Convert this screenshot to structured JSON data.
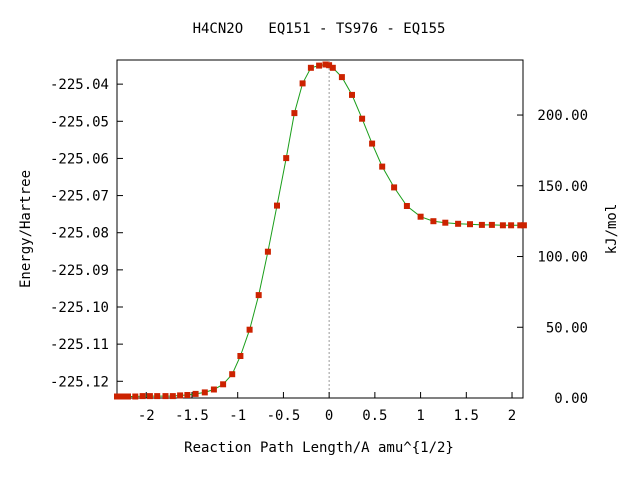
{
  "chart_data": {
    "type": "line",
    "title": "H4CN2O   EQ151 - TS976 - EQ155",
    "xlabel": "Reaction Path Length/A amu^{1/2}",
    "ylabel": "Energy/Hartree",
    "y2label": "kJ/mol",
    "xlim": [
      -2.32,
      2.12
    ],
    "ylim": [
      -225.1245,
      -225.0335
    ],
    "y2lim_kjmol": [
      0,
      238.9
    ],
    "grid": false,
    "transition_state_x": 0,
    "x_ticks": [
      "-2",
      "-1.5",
      "-1",
      "-0.5",
      "0",
      "0.5",
      "1",
      "1.5",
      "2"
    ],
    "x_tick_values": [
      -2,
      -1.5,
      -1,
      -0.5,
      0,
      0.5,
      1,
      1.5,
      2
    ],
    "y_ticks": [
      "-225.04",
      "-225.05",
      "-225.06",
      "-225.07",
      "-225.08",
      "-225.09",
      "-225.10",
      "-225.11",
      "-225.12"
    ],
    "y_tick_values": [
      -225.04,
      -225.05,
      -225.06,
      -225.07,
      -225.08,
      -225.09,
      -225.1,
      -225.11,
      -225.12
    ],
    "y2_ticks": [
      "0.00",
      "50.00",
      "100.00",
      "150.00",
      "200.00"
    ],
    "y2_tick_values": [
      0,
      50,
      100,
      150,
      200
    ],
    "series": [
      {
        "color": "#1a9e1a",
        "marker_color": "#cc2200",
        "x": [
          -2.32,
          -2.28,
          -2.24,
          -2.2,
          -2.12,
          -2.04,
          -1.96,
          -1.88,
          -1.79,
          -1.71,
          -1.63,
          -1.55,
          -1.46,
          -1.36,
          -1.26,
          -1.16,
          -1.06,
          -0.97,
          -0.87,
          -0.77,
          -0.67,
          -0.57,
          -0.47,
          -0.38,
          -0.29,
          -0.2,
          -0.11,
          -0.04,
          0.0,
          0.04,
          0.14,
          0.25,
          0.36,
          0.47,
          0.58,
          0.71,
          0.85,
          1.0,
          1.14,
          1.27,
          1.41,
          1.54,
          1.67,
          1.78,
          1.9,
          1.99,
          2.09,
          2.13
        ],
        "y": [
          -225.1241,
          -225.1241,
          -225.1241,
          -225.1241,
          -225.1241,
          -225.124,
          -225.124,
          -225.124,
          -225.124,
          -225.124,
          -225.1238,
          -225.1237,
          -225.1234,
          -225.123,
          -225.1222,
          -225.1208,
          -225.1181,
          -225.1132,
          -225.1061,
          -225.0968,
          -225.0851,
          -225.0727,
          -225.0599,
          -225.0478,
          -225.0398,
          -225.0356,
          -225.035,
          -225.0347,
          -225.0349,
          -225.0356,
          -225.0381,
          -225.0429,
          -225.0493,
          -225.056,
          -225.0622,
          -225.0678,
          -225.0728,
          -225.0757,
          -225.0769,
          -225.0773,
          -225.0776,
          -225.0777,
          -225.0779,
          -225.0779,
          -225.078,
          -225.078,
          -225.078,
          -225.078
        ]
      }
    ]
  }
}
